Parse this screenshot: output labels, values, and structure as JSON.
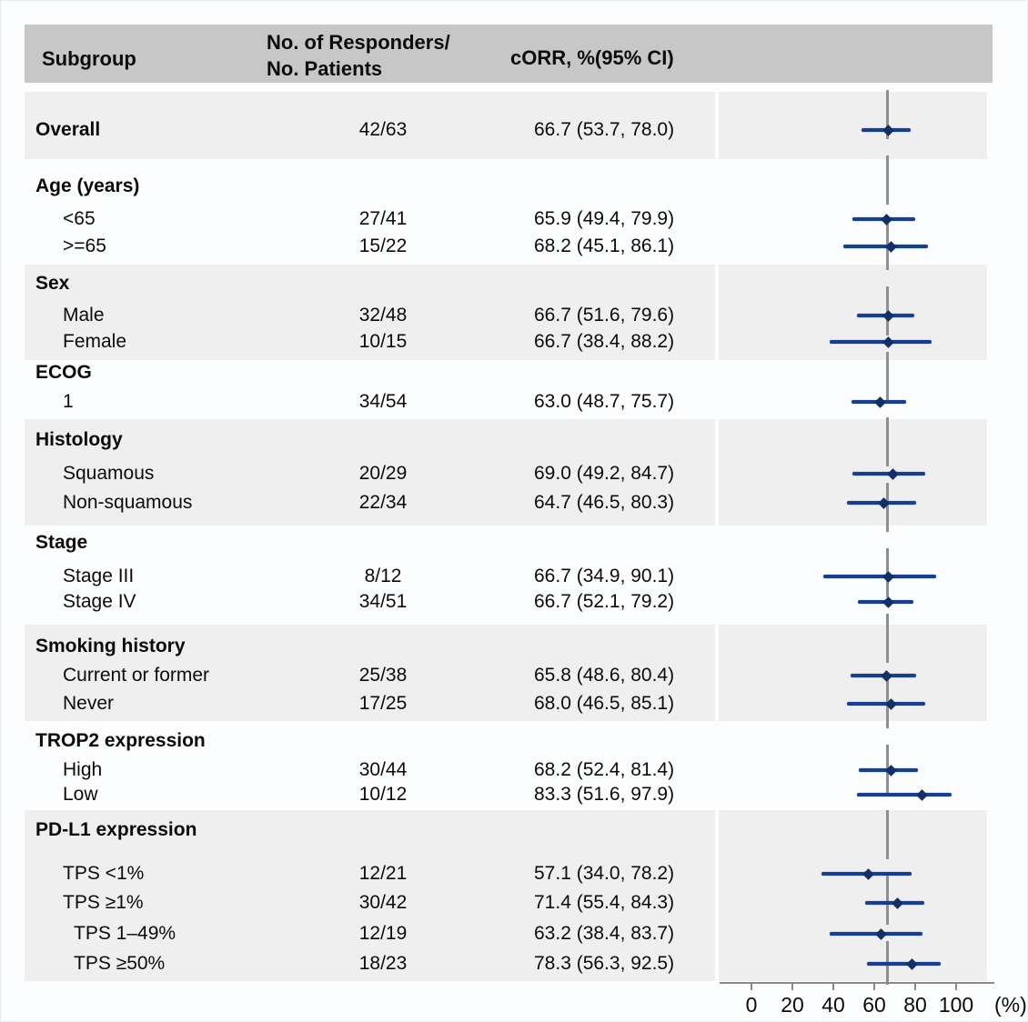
{
  "header": {
    "col_subgroup": "Subgroup",
    "col_n_line1": "No. of Responders/",
    "col_n_line2": "No. Patients",
    "col_corr": "cORR, %(95% CI)"
  },
  "axis": {
    "unit": "(%)"
  },
  "colors": {
    "bar": "#16408f",
    "marker": "#122f66",
    "reference_line": "#8f8f8f",
    "header_band": "#c7c7c7",
    "shaded_band": "#efefef",
    "axis": "#8a8a8a",
    "text": "#0b0b0b"
  },
  "chart_data": {
    "type": "scatter",
    "variant": "forest-plot",
    "title": "",
    "xlabel": "(%)",
    "xlim": [
      0,
      100
    ],
    "xticks": [
      0,
      20,
      40,
      60,
      80,
      100
    ],
    "reference_line_x": 66.7,
    "columns": [
      "Subgroup",
      "No. of Responders/No. Patients",
      "cORR, %(95% CI)"
    ],
    "sections": [
      {
        "header": null,
        "shaded": true,
        "rows": [
          {
            "label": "Overall",
            "bold": true,
            "indent": 0,
            "n": "42/63",
            "corr": "66.7 (53.7, 78.0)",
            "est": 66.7,
            "lo": 53.7,
            "hi": 78.0
          }
        ]
      },
      {
        "header": "Age (years)",
        "shaded": false,
        "rows": [
          {
            "label": "<65",
            "n": "27/41",
            "corr": "65.9 (49.4, 79.9)",
            "est": 65.9,
            "lo": 49.4,
            "hi": 79.9
          },
          {
            "label": ">=65",
            "n": "15/22",
            "corr": "68.2 (45.1, 86.1)",
            "est": 68.2,
            "lo": 45.1,
            "hi": 86.1
          }
        ]
      },
      {
        "header": "Sex",
        "shaded": true,
        "rows": [
          {
            "label": "Male",
            "n": "32/48",
            "corr": "66.7 (51.6, 79.6)",
            "est": 66.7,
            "lo": 51.6,
            "hi": 79.6
          },
          {
            "label": "Female",
            "n": "10/15",
            "corr": "66.7 (38.4, 88.2)",
            "est": 66.7,
            "lo": 38.4,
            "hi": 88.2
          }
        ]
      },
      {
        "header": "ECOG",
        "shaded": false,
        "rows": [
          {
            "label": "1",
            "n": "34/54",
            "corr": "63.0 (48.7, 75.7)",
            "est": 63.0,
            "lo": 48.7,
            "hi": 75.7
          }
        ]
      },
      {
        "header": "Histology",
        "shaded": true,
        "rows": [
          {
            "label": "Squamous",
            "n": "20/29",
            "corr": "69.0 (49.2, 84.7)",
            "est": 69.0,
            "lo": 49.2,
            "hi": 84.7
          },
          {
            "label": "Non-squamous",
            "n": "22/34",
            "corr": "64.7 (46.5, 80.3)",
            "est": 64.7,
            "lo": 46.5,
            "hi": 80.3
          }
        ]
      },
      {
        "header": "Stage",
        "shaded": false,
        "rows": [
          {
            "label": "Stage III",
            "n": "8/12",
            "corr": "66.7 (34.9, 90.1)",
            "est": 66.7,
            "lo": 34.9,
            "hi": 90.1
          },
          {
            "label": "Stage IV",
            "n": "34/51",
            "corr": "66.7 (52.1, 79.2)",
            "est": 66.7,
            "lo": 52.1,
            "hi": 79.2
          }
        ]
      },
      {
        "header": "Smoking history",
        "shaded": true,
        "rows": [
          {
            "label": "Current or former",
            "n": "25/38",
            "corr": "65.8 (48.6, 80.4)",
            "est": 65.8,
            "lo": 48.6,
            "hi": 80.4
          },
          {
            "label": "Never",
            "n": "17/25",
            "corr": "68.0 (46.5, 85.1)",
            "est": 68.0,
            "lo": 46.5,
            "hi": 85.1
          }
        ]
      },
      {
        "header": "TROP2 expression",
        "shaded": false,
        "rows": [
          {
            "label": "High",
            "n": "30/44",
            "corr": "68.2 (52.4, 81.4)",
            "est": 68.2,
            "lo": 52.4,
            "hi": 81.4
          },
          {
            "label": "Low",
            "n": "10/12",
            "corr": "83.3 (51.6, 97.9)",
            "est": 83.3,
            "lo": 51.6,
            "hi": 97.9
          }
        ]
      },
      {
        "header": "PD-L1 expression",
        "shaded": true,
        "rows": [
          {
            "label": "TPS <1%",
            "n": "12/21",
            "corr": "57.1 (34.0, 78.2)",
            "est": 57.1,
            "lo": 34.0,
            "hi": 78.2
          },
          {
            "label": "TPS ≥1%",
            "n": "30/42",
            "corr": "71.4 (55.4, 84.3)",
            "est": 71.4,
            "lo": 55.4,
            "hi": 84.3
          },
          {
            "label": "TPS 1–49%",
            "indent": 2,
            "n": "12/19",
            "corr": "63.2 (38.4, 83.7)",
            "est": 63.2,
            "lo": 38.4,
            "hi": 83.7
          },
          {
            "label": "TPS ≥50%",
            "indent": 2,
            "n": "18/23",
            "corr": "78.3 (56.3, 92.5)",
            "est": 78.3,
            "lo": 56.3,
            "hi": 92.5
          }
        ]
      }
    ]
  }
}
